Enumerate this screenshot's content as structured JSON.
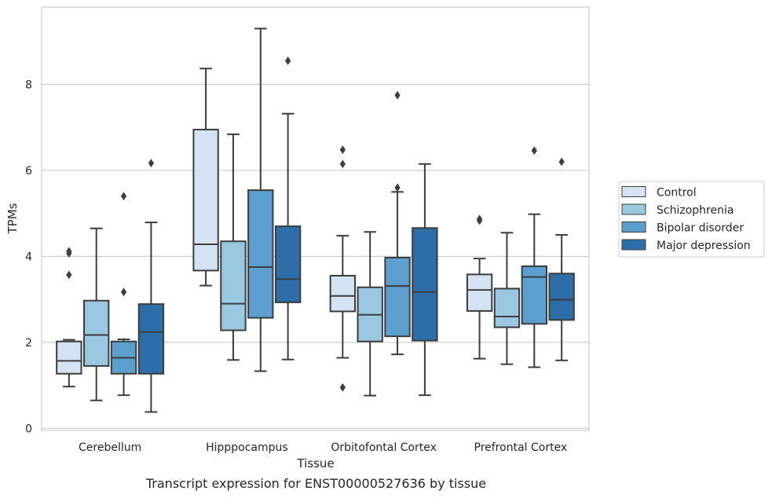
{
  "chart_data": {
    "type": "boxplot",
    "caption": "Transcript expression for ENST00000527636 by tissue",
    "xlabel": "Tissue",
    "ylabel": "TPMs",
    "ylim": [
      -0.05,
      9.8
    ],
    "yticks": [
      0,
      2,
      4,
      6,
      8
    ],
    "grid": true,
    "legend_position": "right",
    "categories": [
      "Cerebellum",
      "Hipppocampus",
      "Orbitofontal Cortex",
      "Prefrontal Cortex"
    ],
    "series": [
      {
        "name": "Control",
        "color": "#d3e3f3",
        "boxes": [
          {
            "whislo": 0.97,
            "q1": 1.27,
            "med": 1.57,
            "q3": 2.02,
            "whishi": 2.06,
            "fliers": [
              4.12,
              4.07,
              3.57
            ]
          },
          {
            "whislo": 3.32,
            "q1": 3.67,
            "med": 4.28,
            "q3": 6.95,
            "whishi": 8.37,
            "fliers": []
          },
          {
            "whislo": 1.64,
            "q1": 2.72,
            "med": 3.08,
            "q3": 3.55,
            "whishi": 4.48,
            "fliers": [
              6.48,
              6.15,
              0.95
            ]
          },
          {
            "whislo": 1.62,
            "q1": 2.73,
            "med": 3.22,
            "q3": 3.58,
            "whishi": 3.95,
            "fliers": [
              4.87,
              4.83
            ]
          }
        ]
      },
      {
        "name": "Schizophrenia",
        "color": "#9ac8e0",
        "boxes": [
          {
            "whislo": 0.65,
            "q1": 1.45,
            "med": 2.17,
            "q3": 2.97,
            "whishi": 4.65,
            "fliers": []
          },
          {
            "whislo": 1.59,
            "q1": 2.28,
            "med": 2.9,
            "q3": 4.35,
            "whishi": 6.84,
            "fliers": []
          },
          {
            "whislo": 0.76,
            "q1": 2.02,
            "med": 2.64,
            "q3": 3.28,
            "whishi": 4.57,
            "fliers": []
          },
          {
            "whislo": 1.49,
            "q1": 2.35,
            "med": 2.6,
            "q3": 3.25,
            "whishi": 4.55,
            "fliers": []
          }
        ]
      },
      {
        "name": "Bipolar disorder",
        "color": "#5a9fcd",
        "boxes": [
          {
            "whislo": 0.77,
            "q1": 1.27,
            "med": 1.64,
            "q3": 2.02,
            "whishi": 2.07,
            "fliers": [
              5.4,
              3.17
            ]
          },
          {
            "whislo": 1.33,
            "q1": 2.57,
            "med": 3.75,
            "q3": 5.54,
            "whishi": 9.3,
            "fliers": []
          },
          {
            "whislo": 1.72,
            "q1": 2.14,
            "med": 3.31,
            "q3": 3.97,
            "whishi": 5.5,
            "fliers": [
              7.75,
              5.6
            ]
          },
          {
            "whislo": 1.42,
            "q1": 2.43,
            "med": 3.52,
            "q3": 3.77,
            "whishi": 4.98,
            "fliers": [
              6.46
            ]
          }
        ]
      },
      {
        "name": "Major depression",
        "color": "#2b6ea9",
        "boxes": [
          {
            "whislo": 0.38,
            "q1": 1.27,
            "med": 2.24,
            "q3": 2.89,
            "whishi": 4.79,
            "fliers": [
              6.17
            ]
          },
          {
            "whislo": 1.6,
            "q1": 2.93,
            "med": 3.47,
            "q3": 4.7,
            "whishi": 7.32,
            "fliers": [
              8.55
            ]
          },
          {
            "whislo": 0.77,
            "q1": 2.04,
            "med": 3.17,
            "q3": 4.66,
            "whishi": 6.15,
            "fliers": []
          },
          {
            "whislo": 1.58,
            "q1": 2.52,
            "med": 2.99,
            "q3": 3.6,
            "whishi": 4.5,
            "fliers": [
              6.2
            ]
          }
        ]
      }
    ]
  }
}
